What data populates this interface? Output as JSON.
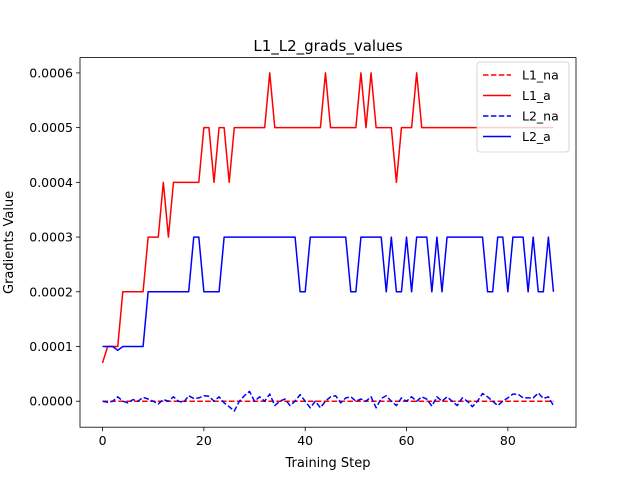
{
  "chart_data": {
    "type": "line",
    "title": "L1_L2_grads_values",
    "xlabel": "Training Step",
    "ylabel": "Gradients Value",
    "xlim": [
      -4.45,
      93.45
    ],
    "ylim": [
      -4.75e-05,
      0.000628
    ],
    "xticks": [
      0,
      20,
      40,
      60,
      80
    ],
    "xtick_labels": [
      "0",
      "20",
      "40",
      "60",
      "80"
    ],
    "yticks": [
      0,
      0.0001,
      0.0002,
      0.0003,
      0.0004,
      0.0005,
      0.0006
    ],
    "ytick_labels": [
      "0.0000",
      "0.0001",
      "0.0002",
      "0.0003",
      "0.0004",
      "0.0005",
      "0.0006"
    ],
    "grid": false,
    "legend_position": "upper right",
    "x_range": [
      0,
      89
    ],
    "series": [
      {
        "name": "L1_na",
        "color": "#ff0000",
        "style": "dashed",
        "values": [
          0.0,
          0.0,
          0.0,
          0.0,
          0.0,
          0.0,
          0.0,
          0.0,
          0.0,
          0.0,
          0.0,
          0.0,
          0.0,
          0.0,
          0.0,
          0.0,
          0.0,
          0.0,
          0.0,
          0.0,
          0.0,
          0.0,
          0.0,
          0.0,
          0.0,
          0.0,
          0.0,
          0.0,
          0.0,
          0.0,
          0.0,
          0.0,
          0.0,
          0.0,
          0.0,
          0.0,
          0.0,
          0.0,
          0.0,
          0.0,
          0.0,
          0.0,
          0.0,
          0.0,
          0.0,
          0.0,
          0.0,
          0.0,
          0.0,
          0.0,
          0.0,
          0.0,
          0.0,
          0.0,
          0.0,
          0.0,
          0.0,
          0.0,
          0.0,
          0.0,
          0.0,
          0.0,
          0.0,
          0.0,
          0.0,
          0.0,
          0.0,
          0.0,
          0.0,
          0.0,
          0.0,
          0.0,
          0.0,
          0.0,
          0.0,
          0.0,
          0.0,
          0.0,
          0.0,
          0.0,
          0.0,
          0.0,
          0.0,
          0.0,
          0.0,
          0.0,
          0.0,
          0.0,
          0.0,
          0.0
        ]
      },
      {
        "name": "L1_a",
        "color": "#ff0000",
        "style": "solid",
        "values": [
          7e-05,
          0.0001,
          0.0001,
          0.0001,
          0.0002,
          0.0002,
          0.0002,
          0.0002,
          0.0002,
          0.0003,
          0.0003,
          0.0003,
          0.0004,
          0.0003,
          0.0004,
          0.0004,
          0.0004,
          0.0004,
          0.0004,
          0.0004,
          0.0005,
          0.0005,
          0.0004,
          0.0005,
          0.0005,
          0.0004,
          0.0005,
          0.0005,
          0.0005,
          0.0005,
          0.0005,
          0.0005,
          0.0005,
          0.0006,
          0.0005,
          0.0005,
          0.0005,
          0.0005,
          0.0005,
          0.0005,
          0.0005,
          0.0005,
          0.0005,
          0.0005,
          0.0006,
          0.0005,
          0.0005,
          0.0005,
          0.0005,
          0.0005,
          0.0005,
          0.0006,
          0.0005,
          0.0006,
          0.0005,
          0.0005,
          0.0005,
          0.0005,
          0.0004,
          0.0005,
          0.0005,
          0.0005,
          0.0006,
          0.0005,
          0.0005,
          0.0005,
          0.0005,
          0.0005,
          0.0005,
          0.0005,
          0.0005,
          0.0005,
          0.0005,
          0.0005,
          0.0005,
          0.0005,
          0.0005,
          0.0005,
          0.0005,
          0.0005,
          0.0005,
          0.0005,
          0.0005,
          0.0005,
          0.0005,
          0.0005,
          0.0005,
          0.0005,
          0.0005,
          0.0005
        ]
      },
      {
        "name": "L2_na",
        "color": "#0000ff",
        "style": "dashed",
        "values": [
          0.0,
          -2e-06,
          0.0,
          8e-06,
          0.0,
          -3e-06,
          3e-06,
          0.0,
          7e-06,
          4e-06,
          0.0,
          -5e-06,
          3e-06,
          0.0,
          8e-06,
          0.0,
          -2e-06,
          1e-05,
          5e-06,
          6e-06,
          1e-05,
          9e-06,
          0.0,
          8e-06,
          -3e-06,
          -1e-05,
          -1.8e-05,
          0.0,
          1e-05,
          1.8e-05,
          0.0,
          8e-06,
          0.0,
          1.3e-05,
          -8e-06,
          0.0,
          4e-06,
          -8e-06,
          0.0,
          1.2e-05,
          0.0,
          -1.2e-05,
          0.0,
          -1.2e-05,
          0.0,
          8e-06,
          1e-05,
          -3e-06,
          6e-06,
          8e-06,
          0.0,
          4e-06,
          0.0,
          8e-06,
          -1.2e-05,
          5e-06,
          1e-05,
          0.0,
          -8e-06,
          6e-06,
          0.0,
          8e-06,
          0.0,
          8e-06,
          4e-06,
          -9e-06,
          8e-06,
          0.0,
          8e-06,
          0.0,
          -8e-06,
          6e-06,
          0.0,
          -1e-05,
          0.0,
          1.4e-05,
          8e-06,
          0.0,
          -8e-06,
          0.0,
          6e-06,
          1.3e-05,
          1.3e-05,
          6e-06,
          6e-06,
          6e-06,
          1.5e-05,
          5e-06,
          8e-06,
          -8e-06
        ]
      },
      {
        "name": "L2_a",
        "color": "#0000ff",
        "style": "solid",
        "values": [
          0.0001,
          0.0001,
          0.0001,
          9.3e-05,
          0.0001,
          0.0001,
          0.0001,
          0.0001,
          0.0001,
          0.0002,
          0.0002,
          0.0002,
          0.0002,
          0.0002,
          0.0002,
          0.0002,
          0.0002,
          0.0002,
          0.0003,
          0.0003,
          0.0002,
          0.0002,
          0.0002,
          0.0002,
          0.0003,
          0.0003,
          0.0003,
          0.0003,
          0.0003,
          0.0003,
          0.0003,
          0.0003,
          0.0003,
          0.0003,
          0.0003,
          0.0003,
          0.0003,
          0.0003,
          0.0003,
          0.0002,
          0.0002,
          0.0003,
          0.0003,
          0.0003,
          0.0003,
          0.0003,
          0.0003,
          0.0003,
          0.0003,
          0.0002,
          0.0002,
          0.0003,
          0.0003,
          0.0003,
          0.0003,
          0.0003,
          0.0002,
          0.0003,
          0.0002,
          0.0002,
          0.0003,
          0.0002,
          0.0003,
          0.0003,
          0.0003,
          0.0002,
          0.0003,
          0.0002,
          0.0003,
          0.0003,
          0.0003,
          0.0003,
          0.0003,
          0.0003,
          0.0003,
          0.0003,
          0.0002,
          0.0002,
          0.0003,
          0.0003,
          0.0002,
          0.0003,
          0.0003,
          0.0003,
          0.0002,
          0.0003,
          0.0002,
          0.0002,
          0.0003,
          0.0002
        ]
      }
    ]
  }
}
